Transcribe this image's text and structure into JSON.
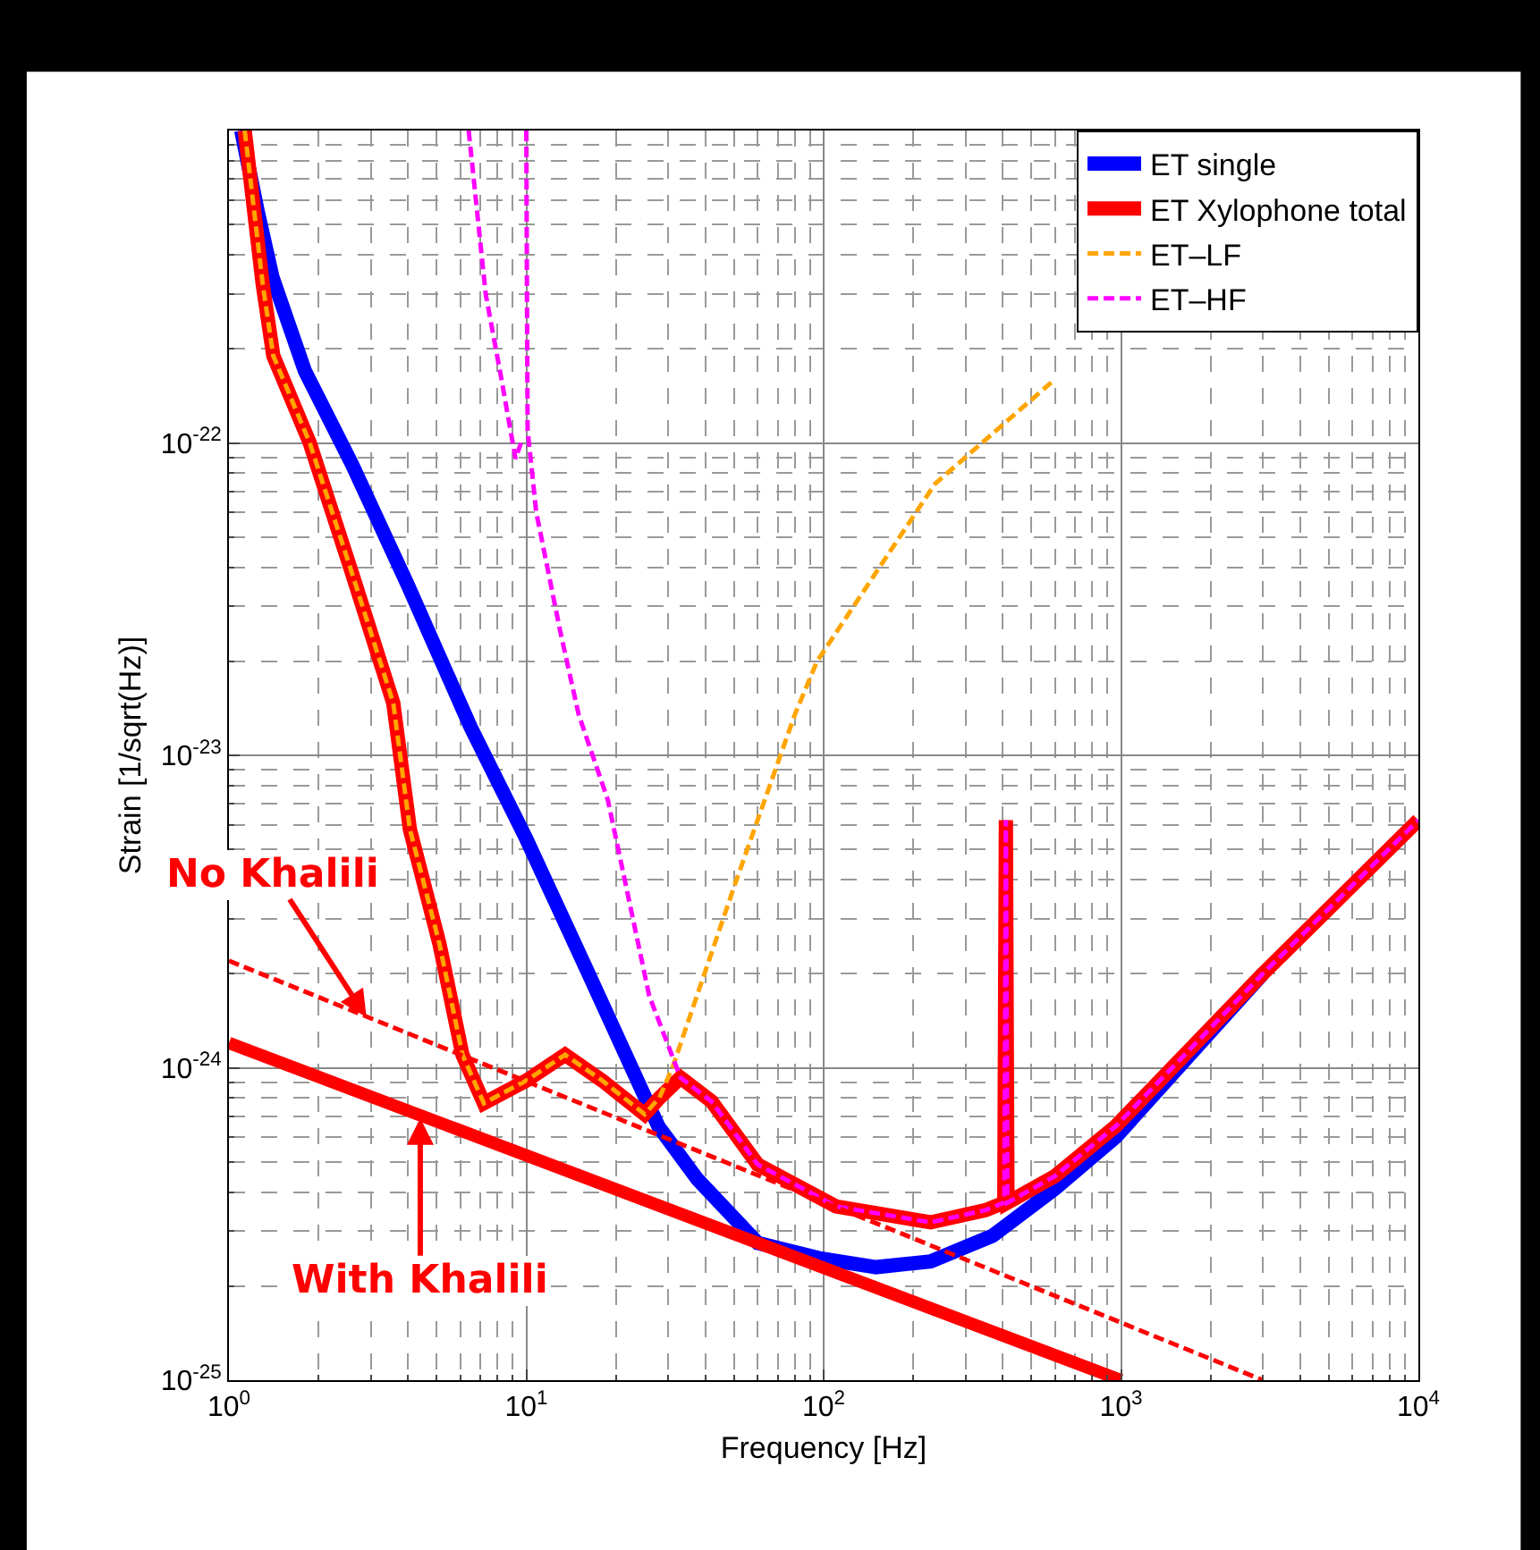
{
  "chart_data": {
    "type": "line",
    "xlabel": "Frequency [Hz]",
    "ylabel": "Strain [1/sqrt(Hz)]",
    "log": "xy",
    "grid": true,
    "legend": "top right",
    "xlim": [
      1,
      10000
    ],
    "xticks": [
      {
        "value": 1,
        "label": "10$^{0}$"
      },
      {
        "value": 10,
        "label": "10$^{1}$"
      },
      {
        "value": 100,
        "label": "10$^{2}$"
      },
      {
        "value": 1000,
        "label": "10$^{3}$"
      },
      {
        "value": 10000,
        "label": "10$^{4}$"
      }
    ],
    "ylim": [
      1e-25,
      1e-21
    ],
    "yticks": [
      {
        "value": 1e-25,
        "label": "10$^{-25}$"
      },
      {
        "value": 1e-24,
        "label": "10$^{-24}$"
      },
      {
        "value": 1e-23,
        "label": "10$^{-23}$"
      },
      {
        "value": 1e-22,
        "label": "10$^{-22}$"
      },
      {
        "value": 1e-21,
        "label": null
      }
    ],
    "series": [
      {
        "name": "ET single",
        "color": "#0000ff",
        "line_style": "solid",
        "x": [
          1.1,
          1.25,
          1.4,
          1.8,
          2.6,
          4,
          6.5,
          10,
          16.2,
          27.8,
          37.6,
          60,
          98,
          150,
          229,
          370,
          600,
          960,
          3000
        ],
        "values": [
          1e-21,
          5.5e-22,
          3.4e-22,
          1.7e-22,
          8.5e-23,
          3.5e-23,
          1.23e-23,
          5.4e-24,
          2e-24,
          6.5e-25,
          4.4e-25,
          2.75e-25,
          2.45e-25,
          2.3e-25,
          2.4e-25,
          2.9e-25,
          4.1e-25,
          6e-25,
          2e-24
        ]
      },
      {
        "name": "ET Xylophone total",
        "color": "#ff0000",
        "line_style": "solid",
        "x": [
          1.13,
          1.3,
          1.41,
          1.87,
          2.6,
          3.57,
          4.06,
          5.1,
          6.1,
          7.2,
          10,
          13.5,
          18,
          25,
          28,
          33,
          42,
          60,
          110,
          229,
          350,
          405,
          410,
          415,
          600,
          960,
          3000,
          10000
        ],
        "values": [
          1e-21,
          3.2e-22,
          1.9e-22,
          1e-22,
          3.8e-23,
          1.47e-23,
          5.8e-24,
          2.5e-24,
          1.1e-24,
          7.7e-25,
          9.1e-25,
          1.1e-24,
          9.1e-25,
          7.1e-25,
          8e-25,
          9.3e-25,
          7.8e-25,
          4.9e-25,
          3.6e-25,
          3.2e-25,
          3.5e-25,
          3.7e-25,
          6.2e-24,
          3.7e-25,
          4.5e-25,
          6.5e-25,
          2e-24,
          6.2e-24
        ]
      },
      {
        "name": "ET–LF",
        "color": "#ffa500",
        "line_style": "dashed",
        "x": [
          1.13,
          1.3,
          1.41,
          1.87,
          2.6,
          3.57,
          4.06,
          5.1,
          6.1,
          7.2,
          10,
          13.5,
          18,
          25,
          28,
          31,
          50,
          80,
          95,
          237,
          600
        ],
        "values": [
          1e-21,
          3.2e-22,
          1.9e-22,
          1e-22,
          3.8e-23,
          1.47e-23,
          5.8e-24,
          2.5e-24,
          1.1e-24,
          7.7e-25,
          9.1e-25,
          1.1e-24,
          9.1e-25,
          7.1e-25,
          8e-25,
          1e-24,
          3.8e-24,
          1.35e-23,
          2e-23,
          7.4e-23,
          1.6e-22
        ]
      },
      {
        "name": "ET–HF",
        "color": "#ff00ff",
        "line_style": "dashed",
        "x": [
          6.4,
          7.3,
          8.2,
          9.2,
          9.6,
          null,
          10,
          10.05,
          10.1,
          10.8,
          13,
          15,
          18.8,
          25.9,
          33,
          42,
          60,
          110,
          229,
          350,
          405,
          410,
          415,
          600,
          960,
          3000,
          10000
        ],
        "values": [
          1e-21,
          3e-22,
          1.65e-22,
          8.9e-23,
          1e-22,
          null,
          1e-21,
          3e-22,
          1.1e-22,
          6e-23,
          2.5e-23,
          1.35e-23,
          7.2e-24,
          1.7e-24,
          9.3e-25,
          7.8e-25,
          4.9e-25,
          3.6e-25,
          3.2e-25,
          3.5e-25,
          3.7e-25,
          6.2e-24,
          3.7e-25,
          4.5e-25,
          6.5e-25,
          2e-24,
          6.2e-24
        ]
      },
      {
        "color": "#ff0000",
        "line_style": "dashed",
        "x": [
          1,
          3000
        ],
        "values": [
          2.2e-24,
          1e-25
        ]
      },
      {
        "color": "#ff0000",
        "line_style": "solid",
        "x": [
          1,
          1000
        ],
        "values": [
          1.2e-24,
          1e-25
        ]
      }
    ],
    "annotations": [
      {
        "text": "No Khalili",
        "x": 2.9,
        "y": 1.45e-24
      },
      {
        "text": "With Khalili",
        "x": 4.4,
        "y": 6.9e-25
      }
    ]
  }
}
